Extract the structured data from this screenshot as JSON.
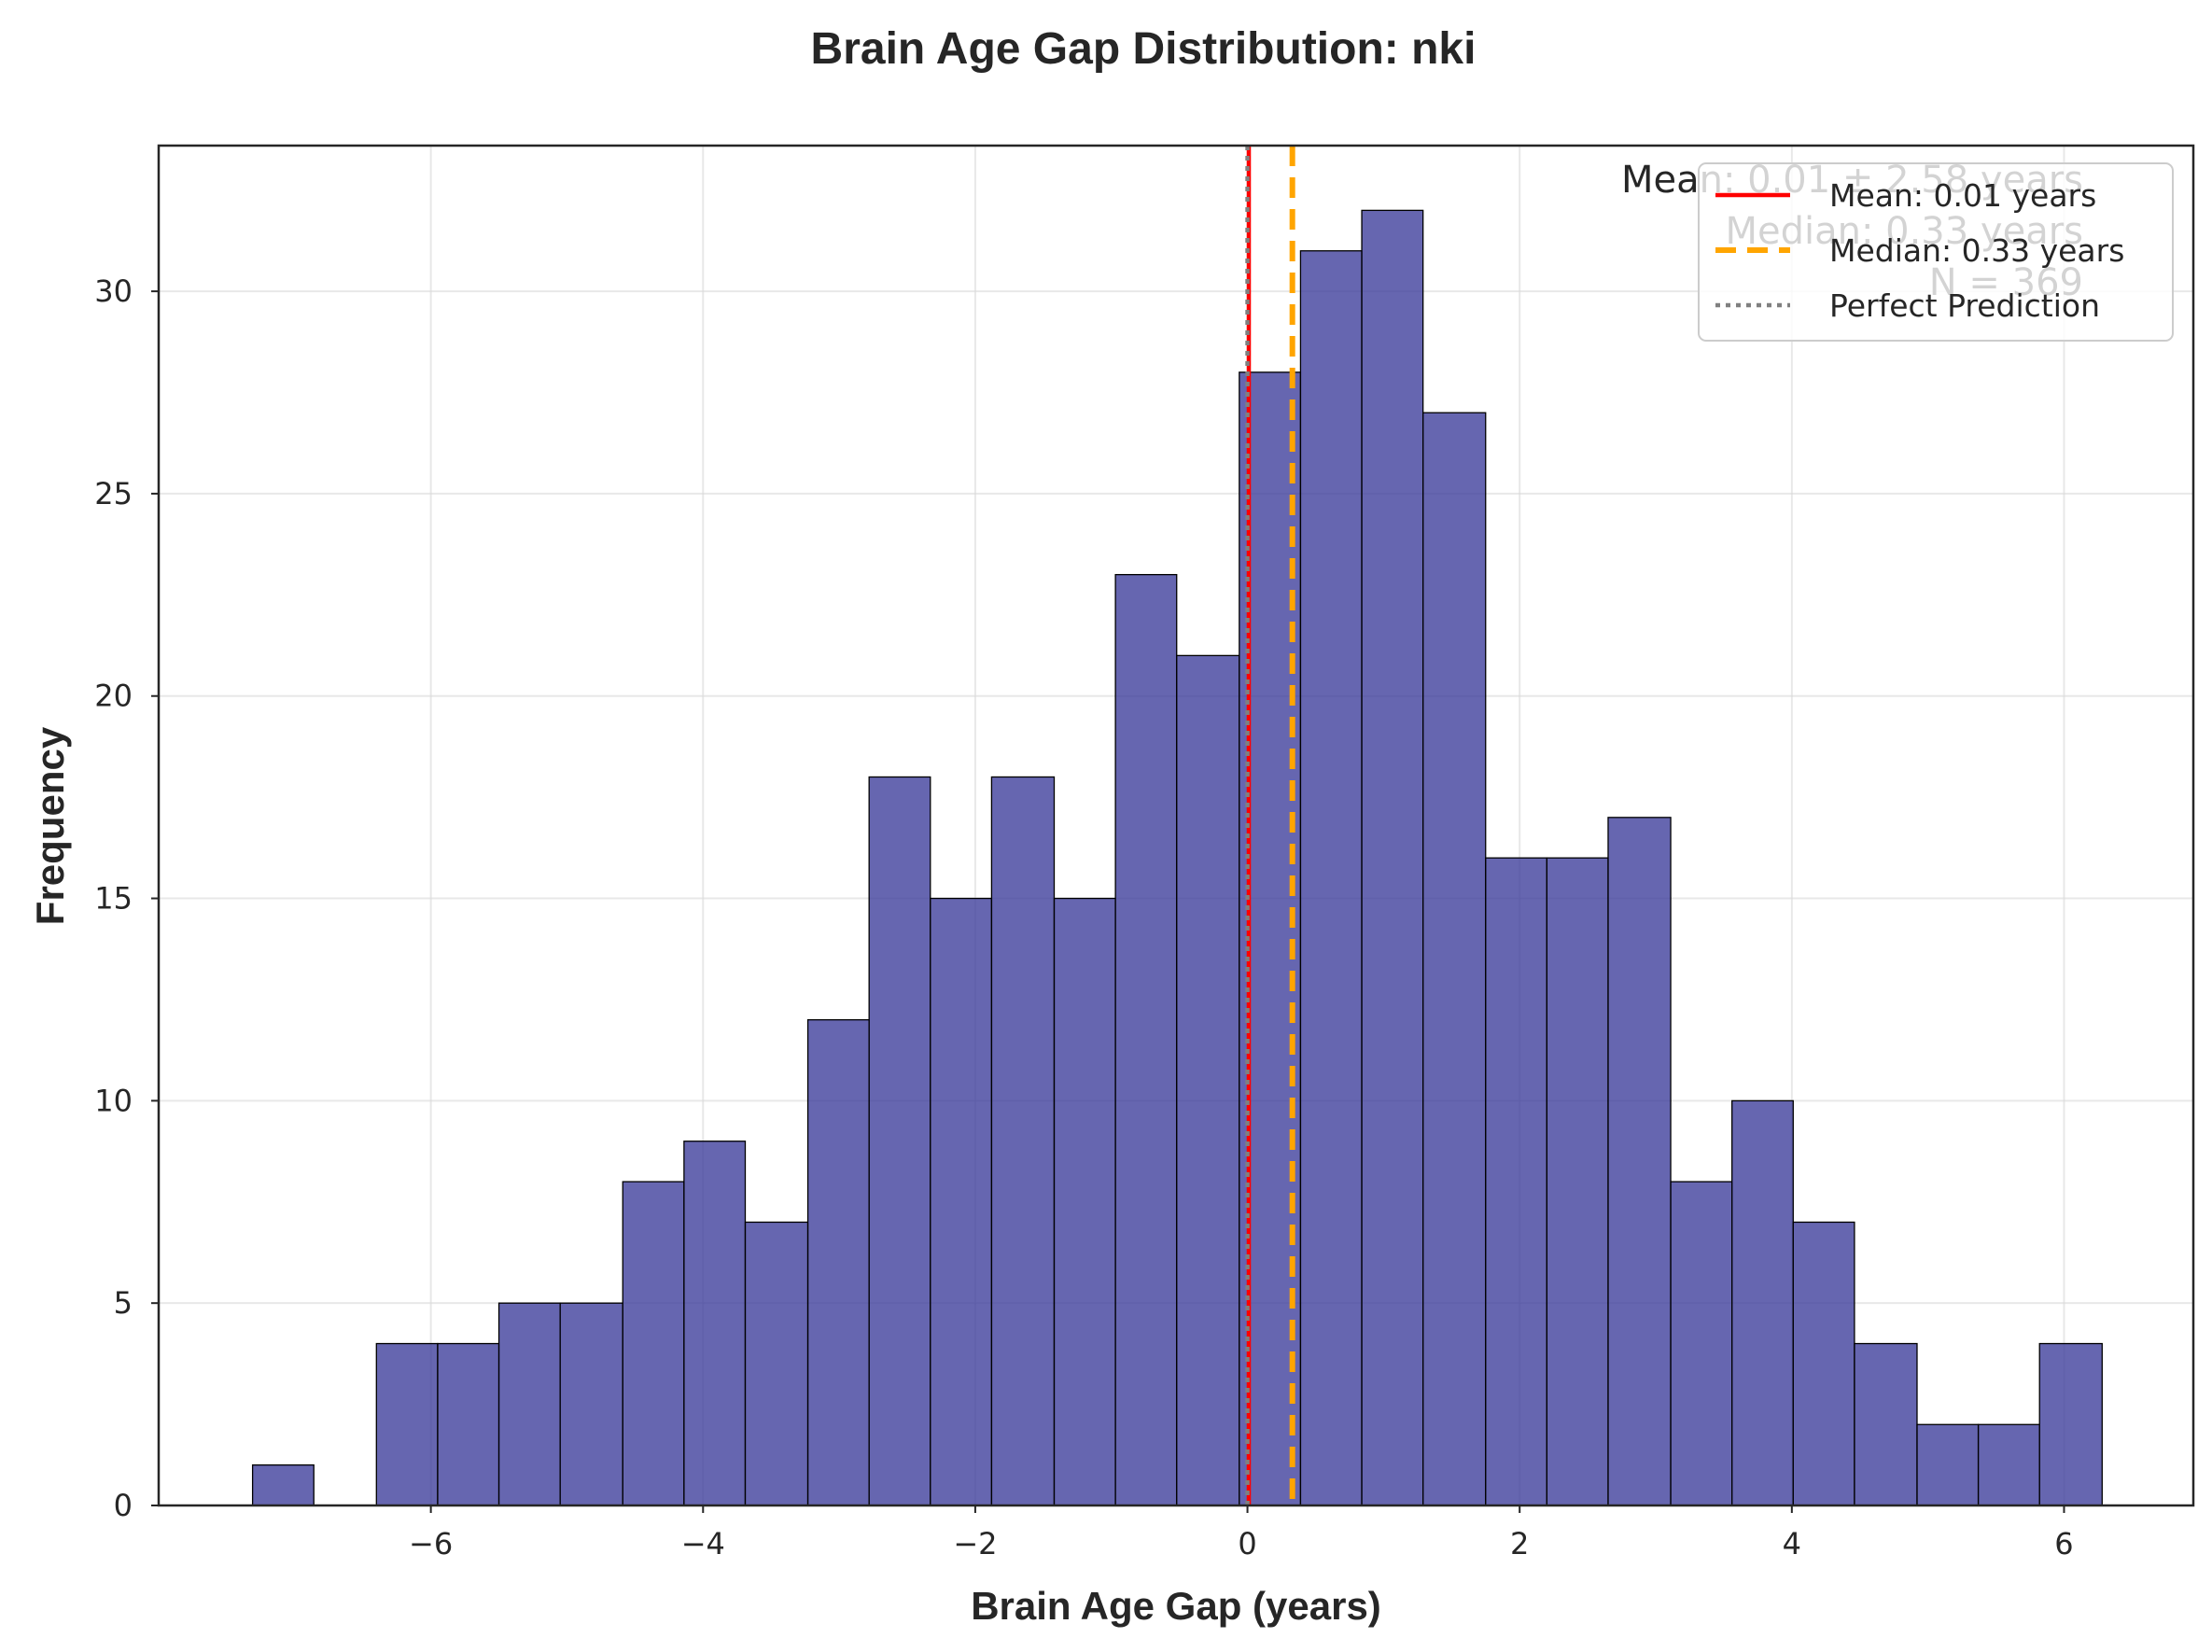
{
  "chart_data": {
    "type": "bar",
    "title": "Brain Age Gap Distribution: nki",
    "xlabel": "Brain Age Gap (years)",
    "ylabel": "Frequency",
    "xlim": [
      -8.0,
      6.95
    ],
    "ylim": [
      0,
      33.6
    ],
    "xticks": [
      -6,
      -4,
      -2,
      0,
      2,
      4,
      6
    ],
    "xtick_labels": [
      "−6",
      "−4",
      "−2",
      "0",
      "2",
      "4",
      "6"
    ],
    "yticks": [
      0,
      5,
      10,
      15,
      20,
      25,
      30
    ],
    "ytick_labels": [
      "0",
      "5",
      "10",
      "15",
      "20",
      "25",
      "30"
    ],
    "grid": true,
    "bar_color": "#3b3b9a",
    "bins": [
      {
        "x0": -7.31,
        "x1": -6.86,
        "count": 1
      },
      {
        "x0": -6.86,
        "x1": -6.4,
        "count": 0
      },
      {
        "x0": -6.4,
        "x1": -5.95,
        "count": 4
      },
      {
        "x0": -5.95,
        "x1": -5.5,
        "count": 4
      },
      {
        "x0": -5.5,
        "x1": -5.05,
        "count": 5
      },
      {
        "x0": -5.05,
        "x1": -4.59,
        "count": 5
      },
      {
        "x0": -4.59,
        "x1": -4.14,
        "count": 8
      },
      {
        "x0": -4.14,
        "x1": -3.69,
        "count": 9
      },
      {
        "x0": -3.69,
        "x1": -3.23,
        "count": 7
      },
      {
        "x0": -3.23,
        "x1": -2.78,
        "count": 12
      },
      {
        "x0": -2.78,
        "x1": -2.33,
        "count": 18
      },
      {
        "x0": -2.33,
        "x1": -1.88,
        "count": 15
      },
      {
        "x0": -1.88,
        "x1": -1.42,
        "count": 18
      },
      {
        "x0": -1.42,
        "x1": -0.97,
        "count": 15
      },
      {
        "x0": -0.97,
        "x1": -0.52,
        "count": 23
      },
      {
        "x0": -0.52,
        "x1": -0.06,
        "count": 21
      },
      {
        "x0": -0.06,
        "x1": 0.39,
        "count": 28
      },
      {
        "x0": 0.39,
        "x1": 0.84,
        "count": 31
      },
      {
        "x0": 0.84,
        "x1": 1.29,
        "count": 32
      },
      {
        "x0": 1.29,
        "x1": 1.75,
        "count": 27
      },
      {
        "x0": 1.75,
        "x1": 2.2,
        "count": 16
      },
      {
        "x0": 2.2,
        "x1": 2.65,
        "count": 16
      },
      {
        "x0": 2.65,
        "x1": 3.11,
        "count": 17
      },
      {
        "x0": 3.11,
        "x1": 3.56,
        "count": 8
      },
      {
        "x0": 3.56,
        "x1": 4.01,
        "count": 10
      },
      {
        "x0": 4.01,
        "x1": 4.46,
        "count": 7
      },
      {
        "x0": 4.46,
        "x1": 4.92,
        "count": 4
      },
      {
        "x0": 4.92,
        "x1": 5.37,
        "count": 2
      },
      {
        "x0": 5.37,
        "x1": 5.82,
        "count": 2
      },
      {
        "x0": 5.82,
        "x1": 6.28,
        "count": 4
      }
    ],
    "vlines": [
      {
        "name": "Mean: 0.01 years",
        "x": 0.01,
        "color": "#ff0000",
        "style": "solid"
      },
      {
        "name": "Median: 0.33 years",
        "x": 0.33,
        "color": "#ffa500",
        "style": "dashed"
      },
      {
        "name": "Perfect Prediction",
        "x": 0,
        "color": "#808080",
        "style": "dotted"
      }
    ],
    "legend_position": "top-right",
    "stats_text": [
      "Mean: 0.01 ± 2.58 years",
      "Median: 0.33 years",
      "N = 369"
    ]
  }
}
